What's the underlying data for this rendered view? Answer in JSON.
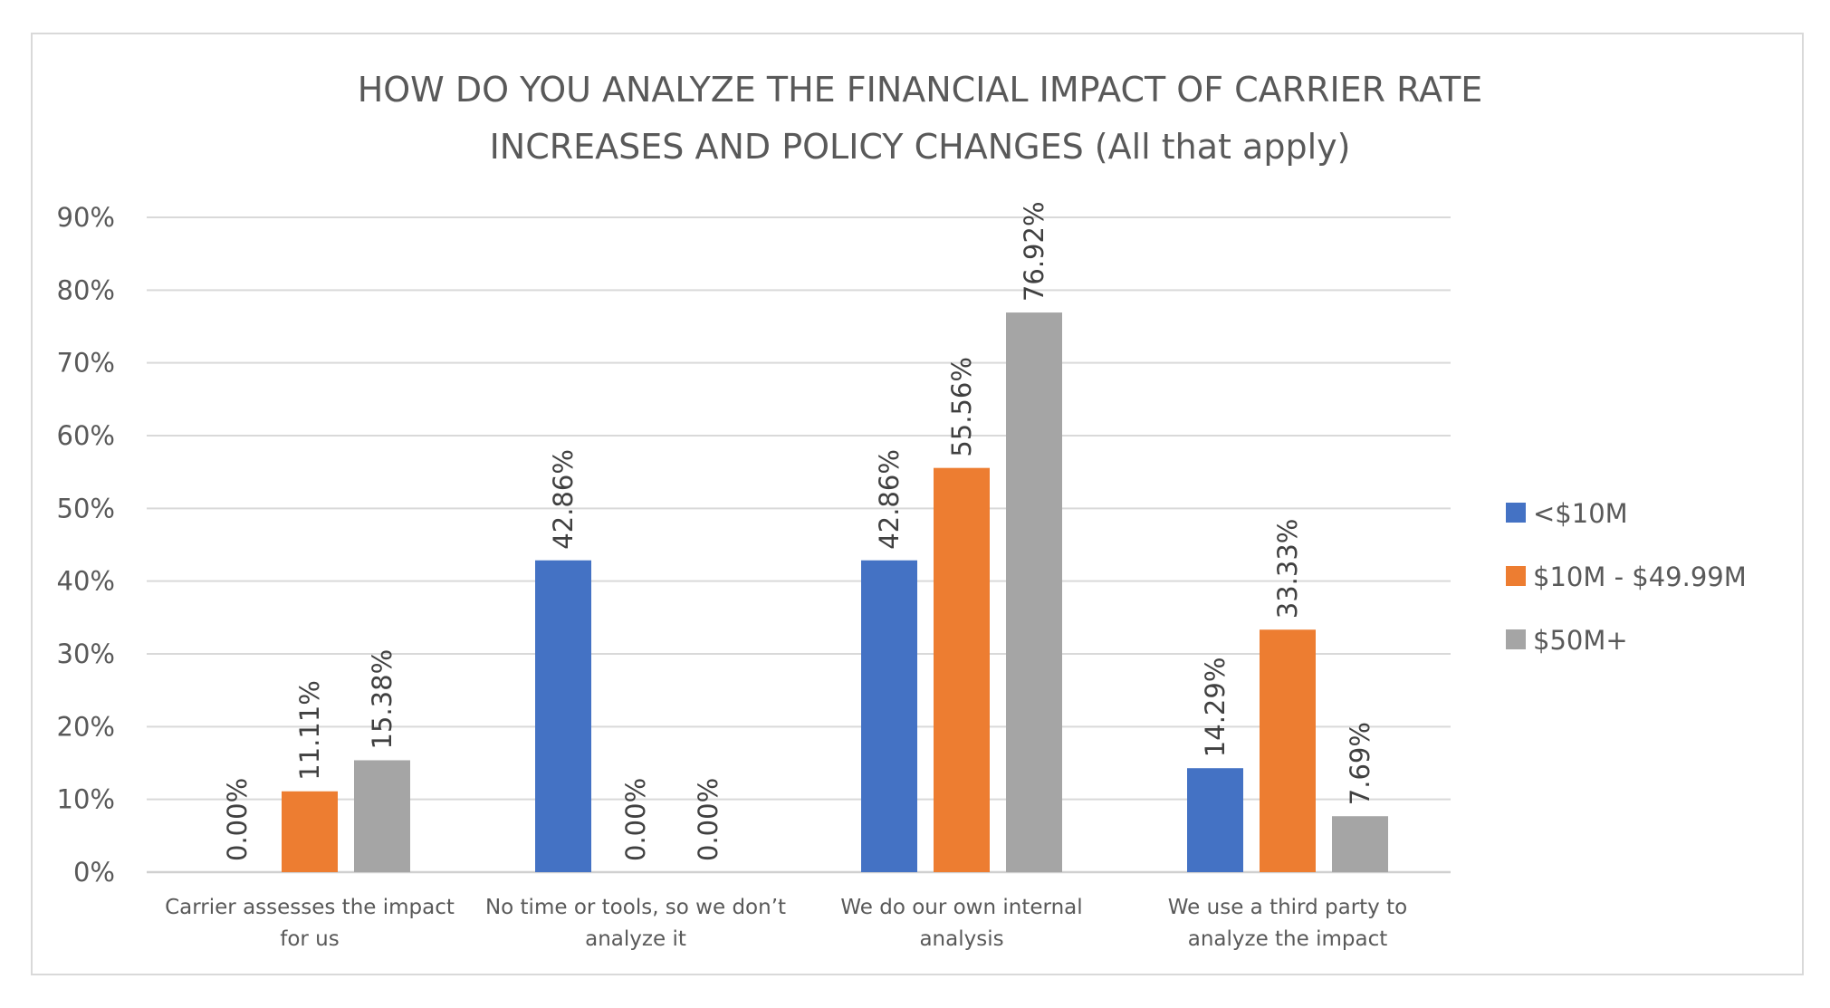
{
  "chart_data": {
    "type": "bar",
    "title": "HOW DO YOU ANALYZE THE FINANCIAL IMPACT OF CARRIER RATE INCREASES AND POLICY CHANGES (All that apply)",
    "title_lines": [
      "HOW DO YOU ANALYZE THE FINANCIAL IMPACT OF CARRIER RATE",
      "INCREASES AND POLICY CHANGES (All that apply)"
    ],
    "xlabel": "",
    "ylabel": "",
    "ylim": [
      0,
      90
    ],
    "yticks": [
      0,
      10,
      20,
      30,
      40,
      50,
      60,
      70,
      80,
      90
    ],
    "ytick_labels": [
      "0%",
      "10%",
      "20%",
      "30%",
      "40%",
      "50%",
      "60%",
      "70%",
      "80%",
      "90%"
    ],
    "grid": true,
    "legend_position": "right",
    "categories": [
      "Carrier assesses the impact for us",
      "No time or tools, so we don’t analyze it",
      "We do our own internal analysis",
      "We use a third party to analyze the impact"
    ],
    "category_lines": [
      [
        "Carrier assesses the impact",
        "for us"
      ],
      [
        "No time or tools, so we don’t",
        "analyze it"
      ],
      [
        "We do our own internal",
        "analysis"
      ],
      [
        "We use a third party to",
        "analyze the impact"
      ]
    ],
    "series": [
      {
        "name": "<$10M",
        "color": "#4472c4",
        "values": [
          0.0,
          42.86,
          42.86,
          14.29
        ],
        "labels": [
          "0.00%",
          "42.86%",
          "42.86%",
          "14.29%"
        ]
      },
      {
        "name": "$10M - $49.99M",
        "color": "#ed7d31",
        "values": [
          11.11,
          0.0,
          55.56,
          33.33
        ],
        "labels": [
          "11.11%",
          "0.00%",
          "55.56%",
          "33.33%"
        ]
      },
      {
        "name": "$50M+",
        "color": "#a5a5a5",
        "values": [
          15.38,
          0.0,
          76.92,
          7.69
        ],
        "labels": [
          "15.38%",
          "0.00%",
          "76.92%",
          "7.69%"
        ]
      }
    ]
  }
}
